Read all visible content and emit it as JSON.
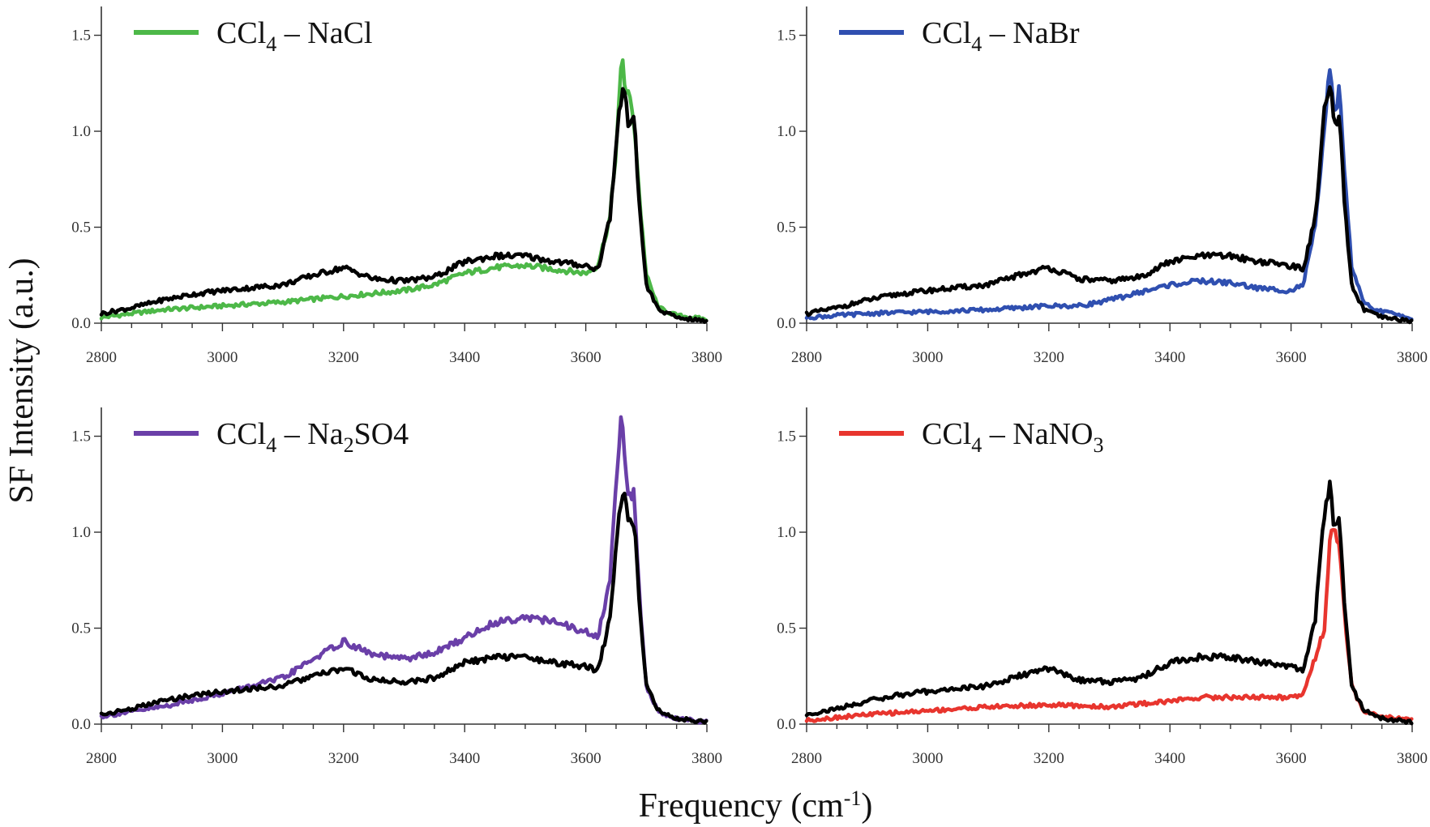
{
  "figure": {
    "ylabel": "SF Intensity (a.u.)",
    "xlabel_main": "Frequency (cm",
    "xlabel_sup": "-1",
    "xlabel_close": ")"
  },
  "chart_data": [
    {
      "type": "line",
      "xlim": [
        2800,
        3800
      ],
      "ylim": [
        0,
        1.65
      ],
      "xticks": [
        2800,
        3000,
        3200,
        3400,
        3600,
        3800
      ],
      "yticks": [
        0.0,
        0.5,
        1.0,
        1.5
      ],
      "legend": {
        "placement": "top-left",
        "prefix": "CCl",
        "sub1": "4",
        "dash": " – ",
        "salt": "NaCl",
        "sub2": "",
        "tail": ""
      },
      "grid": false,
      "series": [
        {
          "name": "CCl4 – NaCl",
          "color": "#4db848",
          "x": [
            2800,
            2850,
            2900,
            3000,
            3100,
            3200,
            3300,
            3350,
            3400,
            3450,
            3500,
            3550,
            3600,
            3620,
            3640,
            3650,
            3660,
            3665,
            3670,
            3680,
            3690,
            3700,
            3720,
            3750,
            3800
          ],
          "y": [
            0.03,
            0.05,
            0.07,
            0.09,
            0.11,
            0.14,
            0.17,
            0.2,
            0.26,
            0.29,
            0.3,
            0.28,
            0.26,
            0.3,
            0.55,
            0.9,
            1.4,
            1.22,
            1.2,
            1.05,
            0.6,
            0.25,
            0.08,
            0.04,
            0.02
          ]
        },
        {
          "name": "",
          "color": "#000000",
          "x": [
            2800,
            2850,
            2900,
            2950,
            3000,
            3100,
            3150,
            3200,
            3250,
            3300,
            3350,
            3400,
            3450,
            3500,
            3550,
            3600,
            3620,
            3640,
            3655,
            3665,
            3670,
            3680,
            3690,
            3700,
            3720,
            3750,
            3800
          ],
          "y": [
            0.05,
            0.08,
            0.12,
            0.15,
            0.17,
            0.2,
            0.25,
            0.29,
            0.23,
            0.22,
            0.24,
            0.32,
            0.35,
            0.35,
            0.32,
            0.3,
            0.28,
            0.55,
            1.1,
            1.25,
            1.05,
            1.05,
            0.55,
            0.2,
            0.07,
            0.03,
            0.01
          ]
        }
      ]
    },
    {
      "type": "line",
      "xlim": [
        2800,
        3800
      ],
      "ylim": [
        0,
        1.65
      ],
      "xticks": [
        2800,
        3000,
        3200,
        3400,
        3600,
        3800
      ],
      "yticks": [
        0.0,
        0.5,
        1.0,
        1.5
      ],
      "legend": {
        "placement": "top-left",
        "prefix": "CCl",
        "sub1": "4",
        "dash": " – ",
        "salt": "NaBr",
        "sub2": "",
        "tail": ""
      },
      "grid": false,
      "series": [
        {
          "name": "CCl4 – NaBr",
          "color": "#2f4fb0",
          "x": [
            2800,
            2900,
            3000,
            3100,
            3200,
            3250,
            3300,
            3350,
            3400,
            3450,
            3500,
            3550,
            3600,
            3620,
            3640,
            3655,
            3665,
            3670,
            3675,
            3680,
            3690,
            3700,
            3720,
            3750,
            3800
          ],
          "y": [
            0.03,
            0.05,
            0.06,
            0.07,
            0.09,
            0.09,
            0.12,
            0.16,
            0.2,
            0.22,
            0.21,
            0.18,
            0.17,
            0.2,
            0.5,
            1.0,
            1.37,
            1.15,
            1.1,
            1.25,
            0.7,
            0.3,
            0.1,
            0.06,
            0.03
          ]
        },
        {
          "name": "",
          "color": "#000000",
          "x": [
            2800,
            2850,
            2900,
            2950,
            3000,
            3100,
            3150,
            3200,
            3250,
            3300,
            3350,
            3400,
            3450,
            3500,
            3550,
            3600,
            3620,
            3640,
            3655,
            3665,
            3670,
            3680,
            3690,
            3700,
            3720,
            3750,
            3800
          ],
          "y": [
            0.05,
            0.08,
            0.12,
            0.15,
            0.17,
            0.2,
            0.25,
            0.29,
            0.23,
            0.22,
            0.24,
            0.32,
            0.35,
            0.35,
            0.32,
            0.3,
            0.28,
            0.55,
            1.1,
            1.25,
            1.05,
            1.05,
            0.55,
            0.2,
            0.07,
            0.03,
            0.01
          ]
        }
      ]
    },
    {
      "type": "line",
      "xlim": [
        2800,
        3800
      ],
      "ylim": [
        0,
        1.65
      ],
      "xticks": [
        2800,
        3000,
        3200,
        3400,
        3600,
        3800
      ],
      "yticks": [
        0.0,
        0.5,
        1.0,
        1.5
      ],
      "legend": {
        "placement": "top-left",
        "prefix": "CCl",
        "sub1": "4",
        "dash": " – ",
        "salt": "Na",
        "sub2": "2",
        "tail": "SO4"
      },
      "grid": false,
      "series": [
        {
          "name": "CCl4 – Na2SO4",
          "color": "#6a3fa8",
          "x": [
            2800,
            2900,
            3000,
            3100,
            3150,
            3200,
            3250,
            3300,
            3350,
            3400,
            3450,
            3500,
            3550,
            3600,
            3620,
            3640,
            3650,
            3660,
            3665,
            3670,
            3680,
            3690,
            3700,
            3720,
            3750,
            3800
          ],
          "y": [
            0.04,
            0.09,
            0.16,
            0.24,
            0.34,
            0.43,
            0.36,
            0.34,
            0.37,
            0.45,
            0.53,
            0.56,
            0.53,
            0.48,
            0.45,
            0.75,
            1.25,
            1.65,
            1.3,
            1.2,
            1.2,
            0.6,
            0.2,
            0.06,
            0.03,
            0.01
          ]
        },
        {
          "name": "",
          "color": "#000000",
          "x": [
            2800,
            2850,
            2900,
            2950,
            3000,
            3100,
            3150,
            3200,
            3250,
            3300,
            3350,
            3400,
            3450,
            3500,
            3550,
            3600,
            3620,
            3640,
            3655,
            3665,
            3670,
            3680,
            3690,
            3700,
            3720,
            3750,
            3800
          ],
          "y": [
            0.05,
            0.08,
            0.12,
            0.15,
            0.17,
            0.2,
            0.25,
            0.29,
            0.23,
            0.22,
            0.24,
            0.32,
            0.35,
            0.35,
            0.32,
            0.3,
            0.28,
            0.55,
            1.1,
            1.25,
            1.05,
            1.05,
            0.55,
            0.2,
            0.07,
            0.03,
            0.01
          ]
        }
      ]
    },
    {
      "type": "line",
      "xlim": [
        2800,
        3800
      ],
      "ylim": [
        0,
        1.65
      ],
      "xticks": [
        2800,
        3000,
        3200,
        3400,
        3600,
        3800
      ],
      "yticks": [
        0.0,
        0.5,
        1.0,
        1.5
      ],
      "legend": {
        "placement": "top-left",
        "prefix": "CCl",
        "sub1": "4",
        "dash": " – ",
        "salt": "NaNO",
        "sub2": "3",
        "tail": ""
      },
      "grid": false,
      "series": [
        {
          "name": "CCl4 – NaNO3",
          "color": "#e8352e",
          "x": [
            2800,
            2900,
            3000,
            3100,
            3200,
            3300,
            3400,
            3450,
            3500,
            3550,
            3600,
            3620,
            3640,
            3655,
            3665,
            3670,
            3680,
            3690,
            3700,
            3720,
            3750,
            3800
          ],
          "y": [
            0.02,
            0.05,
            0.07,
            0.09,
            0.1,
            0.09,
            0.12,
            0.14,
            0.14,
            0.14,
            0.14,
            0.16,
            0.35,
            0.5,
            1.0,
            1.0,
            0.95,
            0.5,
            0.2,
            0.06,
            0.04,
            0.02
          ]
        },
        {
          "name": "",
          "color": "#000000",
          "x": [
            2800,
            2850,
            2900,
            2950,
            3000,
            3100,
            3150,
            3200,
            3250,
            3300,
            3350,
            3400,
            3450,
            3500,
            3550,
            3600,
            3620,
            3640,
            3655,
            3665,
            3670,
            3680,
            3690,
            3700,
            3720,
            3750,
            3800
          ],
          "y": [
            0.05,
            0.08,
            0.12,
            0.15,
            0.17,
            0.2,
            0.25,
            0.29,
            0.23,
            0.22,
            0.24,
            0.32,
            0.35,
            0.35,
            0.32,
            0.3,
            0.28,
            0.55,
            1.1,
            1.25,
            1.05,
            1.05,
            0.55,
            0.2,
            0.07,
            0.03,
            0.01
          ]
        }
      ]
    }
  ]
}
